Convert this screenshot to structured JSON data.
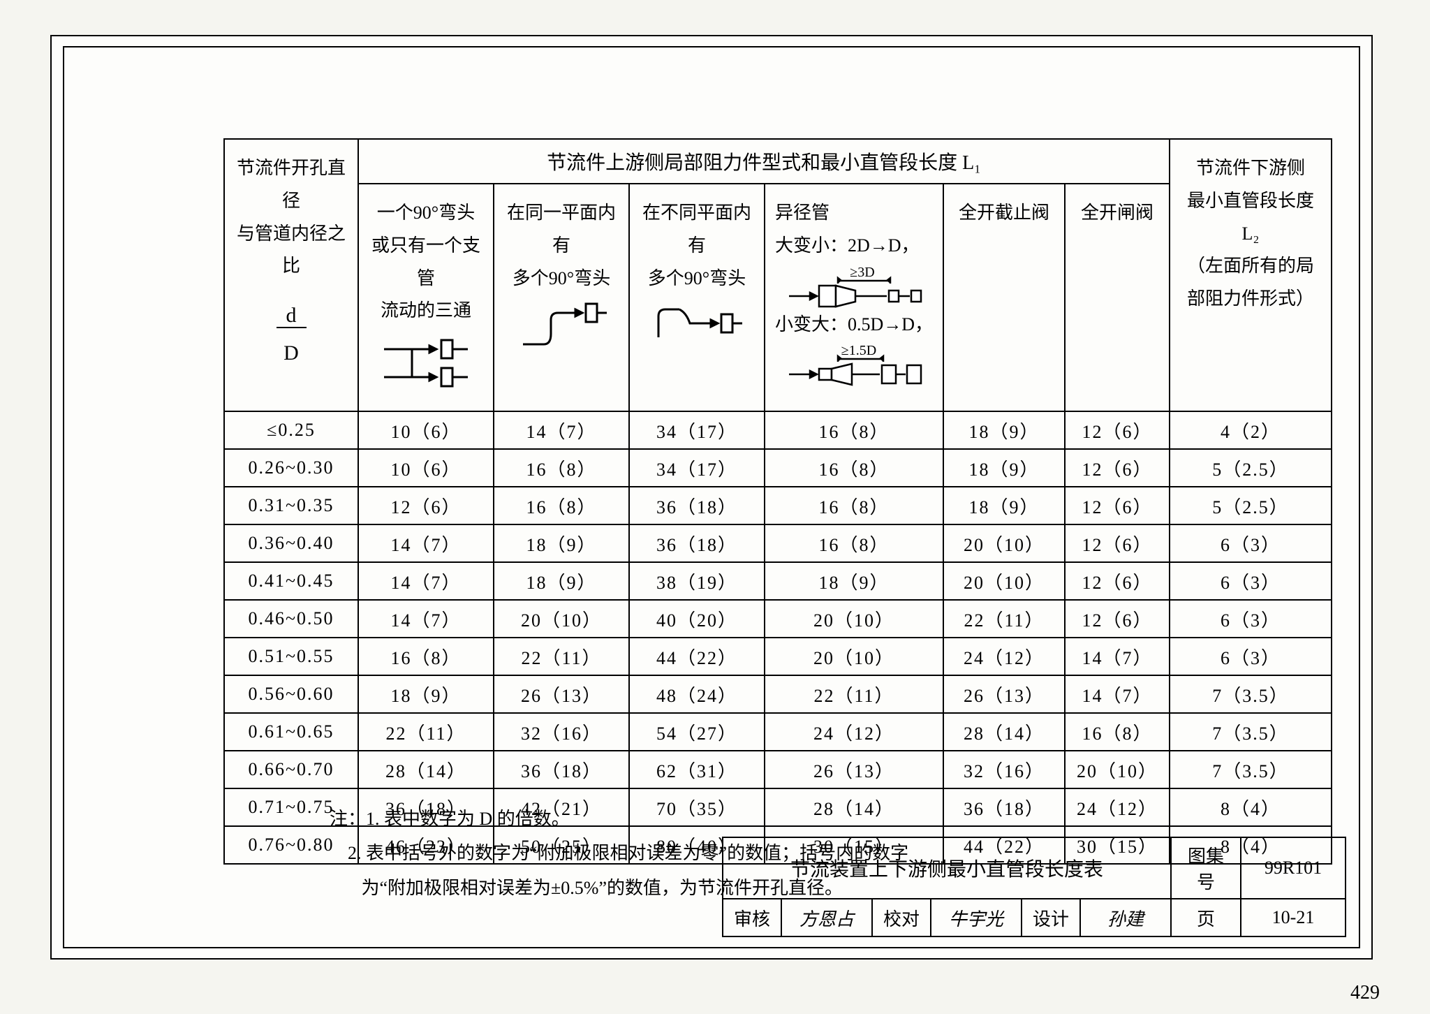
{
  "header_upper": "节流件上游侧局部阻力件型式和最小直管段长度 L₁",
  "ratio_header": {
    "line1": "节流件开孔直径",
    "line2": "与管道内径之比"
  },
  "l2_header": {
    "line1": "节流件下游侧",
    "line2": "最小直管段长度",
    "line3": "L₂",
    "line4": "（左面所有的局",
    "line5": "部阻力件形式）"
  },
  "cols": [
    {
      "text1": "一个90°弯头",
      "text2": "或只有一个支管",
      "text3": "流动的三通"
    },
    {
      "text1": "在同一平面内有",
      "text2": "多个90°弯头"
    },
    {
      "text1": "在不同平面内有",
      "text2": "多个90°弯头"
    },
    {
      "text1": "异径管",
      "text2": "大变小：2D→D，",
      "text3": "≥3D",
      "text4": "小变大：0.5D→D，",
      "text5": "≥1.5D"
    },
    {
      "text1": "全开截止阀"
    },
    {
      "text1": "全开闸阀"
    }
  ],
  "rows": [
    {
      "r": "≤0.25",
      "c": [
        "10（6）",
        "14（7）",
        "34（17）",
        "16（8）",
        "18（9）",
        "12（6）",
        "4（2）"
      ]
    },
    {
      "r": "0.26~0.30",
      "c": [
        "10（6）",
        "16（8）",
        "34（17）",
        "16（8）",
        "18（9）",
        "12（6）",
        "5（2.5）"
      ]
    },
    {
      "r": "0.31~0.35",
      "c": [
        "12（6）",
        "16（8）",
        "36（18）",
        "16（8）",
        "18（9）",
        "12（6）",
        "5（2.5）"
      ]
    },
    {
      "r": "0.36~0.40",
      "c": [
        "14（7）",
        "18（9）",
        "36（18）",
        "16（8）",
        "20（10）",
        "12（6）",
        "6（3）"
      ]
    },
    {
      "r": "0.41~0.45",
      "c": [
        "14（7）",
        "18（9）",
        "38（19）",
        "18（9）",
        "20（10）",
        "12（6）",
        "6（3）"
      ]
    },
    {
      "r": "0.46~0.50",
      "c": [
        "14（7）",
        "20（10）",
        "40（20）",
        "20（10）",
        "22（11）",
        "12（6）",
        "6（3）"
      ]
    },
    {
      "r": "0.51~0.55",
      "c": [
        "16（8）",
        "22（11）",
        "44（22）",
        "20（10）",
        "24（12）",
        "14（7）",
        "6（3）"
      ]
    },
    {
      "r": "0.56~0.60",
      "c": [
        "18（9）",
        "26（13）",
        "48（24）",
        "22（11）",
        "26（13）",
        "14（7）",
        "7（3.5）"
      ]
    },
    {
      "r": "0.61~0.65",
      "c": [
        "22（11）",
        "32（16）",
        "54（27）",
        "24（12）",
        "28（14）",
        "16（8）",
        "7（3.5）"
      ]
    },
    {
      "r": "0.66~0.70",
      "c": [
        "28（14）",
        "36（18）",
        "62（31）",
        "26（13）",
        "32（16）",
        "20（10）",
        "7（3.5）"
      ]
    },
    {
      "r": "0.71~0.75",
      "c": [
        "36（18）",
        "42（21）",
        "70（35）",
        "28（14）",
        "36（18）",
        "24（12）",
        "8（4）"
      ]
    },
    {
      "r": "0.76~0.80",
      "c": [
        "46（23）",
        "50（25）",
        "80（40）",
        "30（15）",
        "44（22）",
        "30（15）",
        "8（4）"
      ]
    }
  ],
  "notes": {
    "prefix": "注：",
    "n1": "1. 表中数字为 D 的倍数。",
    "n2a": "2. 表中括号外的数字为“附加极限相对误差为零”的数值；括号内的数字",
    "n2b": "为“附加极限相对误差为±0.5%”的数值，为节流件开孔直径。"
  },
  "title_block": {
    "title": "节流装置上下游侧最小直管段长度表",
    "drawing_set_label": "图集号",
    "drawing_set": "99R101",
    "review_label": "审核",
    "proof_label": "校对",
    "design_label": "设计",
    "page_label": "页",
    "page_value": "10-21"
  },
  "page_number": "429"
}
